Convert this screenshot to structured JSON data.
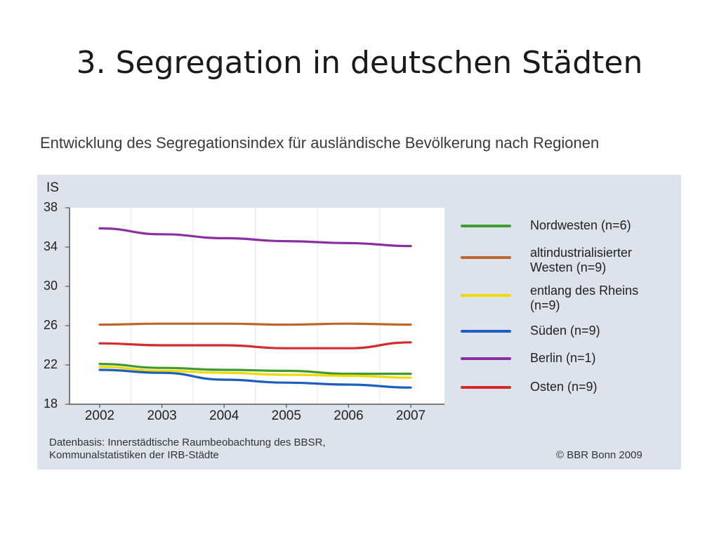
{
  "slide": {
    "title": "3. Segregation in deutschen Städten"
  },
  "chart_data": {
    "type": "line",
    "title": "Entwicklung des Segregationsindex für ausländische Bevölkerung nach Regionen",
    "ylabel": "IS",
    "xlabel": "",
    "categories": [
      "2002",
      "2003",
      "2004",
      "2005",
      "2006",
      "2007"
    ],
    "ylim": [
      18,
      38
    ],
    "yticks": [
      "38",
      "34",
      "30",
      "26",
      "22",
      "18"
    ],
    "grid": "vertical",
    "legend_position": "right",
    "series": [
      {
        "name": "Nordwesten (n=6)",
        "color": "#3f9c2c",
        "values": [
          22.1,
          21.7,
          21.5,
          21.4,
          21.1,
          21.1
        ]
      },
      {
        "name": "altindustrialisierter Westen (n=9)",
        "color": "#c0652a",
        "values": [
          26.1,
          26.2,
          26.2,
          26.1,
          26.2,
          26.1
        ]
      },
      {
        "name": "entlang des Rheins (n=9)",
        "color": "#f0d800",
        "values": [
          21.8,
          21.4,
          21.2,
          21.0,
          20.9,
          20.7
        ]
      },
      {
        "name": "Süden (n=9)",
        "color": "#1a5fc0",
        "values": [
          21.5,
          21.2,
          20.5,
          20.2,
          20.0,
          19.7
        ]
      },
      {
        "name": "Berlin (n=1)",
        "color": "#8a2fa0",
        "values": [
          35.9,
          35.3,
          34.9,
          34.6,
          34.4,
          34.1
        ]
      },
      {
        "name": "Osten (n=9)",
        "color": "#d42b2b",
        "values": [
          24.2,
          24.0,
          24.0,
          23.7,
          23.7,
          24.3
        ]
      }
    ],
    "legend": [
      {
        "label_lines": [
          "Nordwesten (n=6)"
        ]
      },
      {
        "label_lines": [
          "altindustrialisierter",
          "Westen (n=9)"
        ]
      },
      {
        "label_lines": [
          "entlang des Rheins",
          "(n=9)"
        ]
      },
      {
        "label_lines": [
          "Süden (n=9)"
        ]
      },
      {
        "label_lines": [
          "Berlin (n=1)"
        ]
      },
      {
        "label_lines": [
          "Osten (n=9)"
        ]
      }
    ],
    "source_lines": [
      "Datenbasis: Innerstädtische Raumbeobachtung des BBSR,",
      "Kommunalstatistiken der IRB-Städte"
    ],
    "copyright": "© BBR Bonn 2009"
  }
}
